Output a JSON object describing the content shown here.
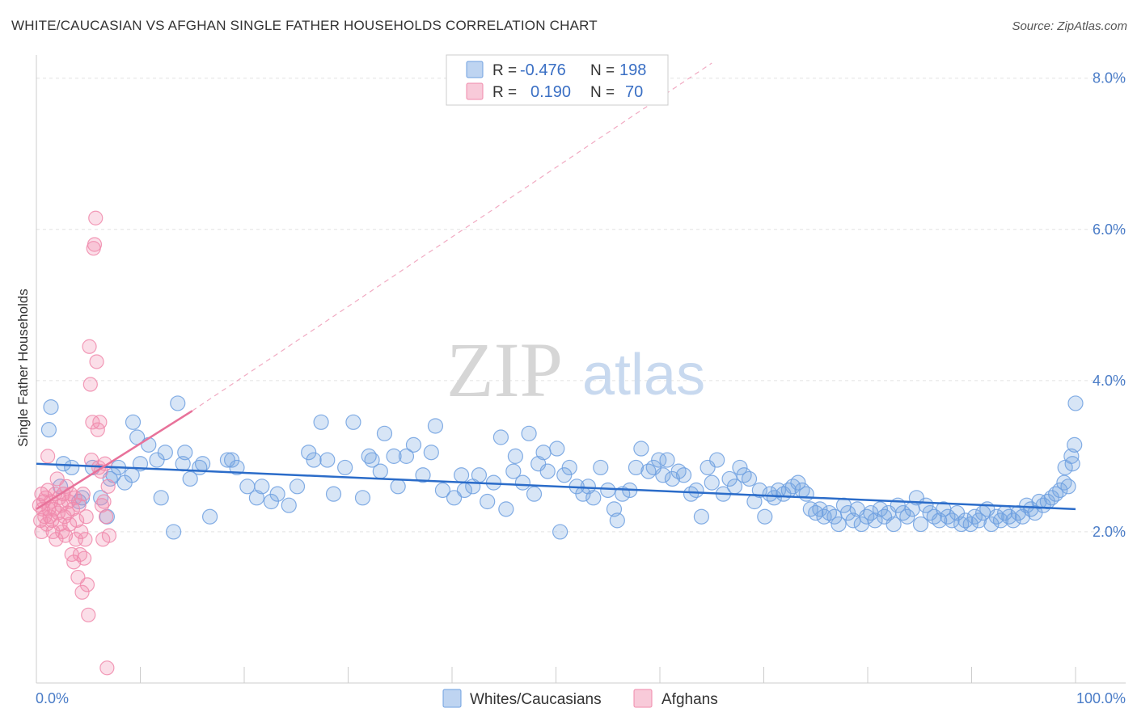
{
  "header": {
    "title": "WHITE/CAUCASIAN VS AFGHAN SINGLE FATHER HOUSEHOLDS CORRELATION CHART",
    "source": "Source: ZipAtlas.com"
  },
  "watermark": {
    "zip": "ZIP",
    "atlas": "atlas"
  },
  "legend": {
    "rows": [
      {
        "r_label": "R =",
        "r_value": "-0.476",
        "n_label": "N =",
        "n_value": "198",
        "color": "#6fa0e0"
      },
      {
        "r_label": "R =",
        "r_value": "0.190",
        "n_label": "N =",
        "n_value": "70",
        "color": "#f08aab"
      }
    ]
  },
  "bottom_legend": {
    "items": [
      {
        "label": "Whites/Caucasians",
        "color": "#6fa0e0"
      },
      {
        "label": "Afghans",
        "color": "#f08aab"
      }
    ]
  },
  "chart_data": {
    "type": "scatter",
    "title": "WHITE/CAUCASIAN VS AFGHAN SINGLE FATHER HOUSEHOLDS CORRELATION CHART",
    "ylabel": "Single Father Households",
    "xlabel": "",
    "xlim": [
      0,
      100
    ],
    "ylim": [
      0,
      8.2
    ],
    "x_tick_labels": [
      "0.0%",
      "100.0%"
    ],
    "y_ticks": [
      {
        "value": 2,
        "label": "2.0%"
      },
      {
        "value": 4,
        "label": "4.0%"
      },
      {
        "value": 6,
        "label": "6.0%"
      },
      {
        "value": 8,
        "label": "8.0%"
      }
    ],
    "grid": true,
    "legend_position": "top-center",
    "series": [
      {
        "name": "Whites/Caucasians",
        "color": "#6fa0e0",
        "trend": {
          "x0": 0,
          "y0": 2.9,
          "x1": 100,
          "y1": 2.3,
          "color": "#2b6cc9"
        },
        "points": [
          [
            1.2,
            3.35
          ],
          [
            1.4,
            3.65
          ],
          [
            2.3,
            2.6
          ],
          [
            2.6,
            2.9
          ],
          [
            3.4,
            2.85
          ],
          [
            4.1,
            2.4
          ],
          [
            4.4,
            2.45
          ],
          [
            5.4,
            2.85
          ],
          [
            6.2,
            2.45
          ],
          [
            7.1,
            2.7
          ],
          [
            6.8,
            2.2
          ],
          [
            7.4,
            2.75
          ],
          [
            7.9,
            2.85
          ],
          [
            8.5,
            2.65
          ],
          [
            9.2,
            2.75
          ],
          [
            9.3,
            3.45
          ],
          [
            10.0,
            2.9
          ],
          [
            9.7,
            3.25
          ],
          [
            10.8,
            3.15
          ],
          [
            12.0,
            2.45
          ],
          [
            11.6,
            2.95
          ],
          [
            12.4,
            3.05
          ],
          [
            13.6,
            3.7
          ],
          [
            13.2,
            2.0
          ],
          [
            14.1,
            2.9
          ],
          [
            14.8,
            2.7
          ],
          [
            14.3,
            3.05
          ],
          [
            15.7,
            2.85
          ],
          [
            16.0,
            2.9
          ],
          [
            16.7,
            2.2
          ],
          [
            18.4,
            2.95
          ],
          [
            18.8,
            2.95
          ],
          [
            19.3,
            2.85
          ],
          [
            20.3,
            2.6
          ],
          [
            21.2,
            2.45
          ],
          [
            21.7,
            2.6
          ],
          [
            22.6,
            2.4
          ],
          [
            23.2,
            2.5
          ],
          [
            24.3,
            2.35
          ],
          [
            25.1,
            2.6
          ],
          [
            26.2,
            3.05
          ],
          [
            26.7,
            2.95
          ],
          [
            27.4,
            3.45
          ],
          [
            28.0,
            2.95
          ],
          [
            28.6,
            2.5
          ],
          [
            29.7,
            2.85
          ],
          [
            30.5,
            3.45
          ],
          [
            31.4,
            2.45
          ],
          [
            32.3,
            2.95
          ],
          [
            32.0,
            3.0
          ],
          [
            33.5,
            3.3
          ],
          [
            33.1,
            2.8
          ],
          [
            34.4,
            3.0
          ],
          [
            34.8,
            2.6
          ],
          [
            35.6,
            3.0
          ],
          [
            36.3,
            3.15
          ],
          [
            37.2,
            2.75
          ],
          [
            38.0,
            3.05
          ],
          [
            38.4,
            3.4
          ],
          [
            39.1,
            2.55
          ],
          [
            40.2,
            2.45
          ],
          [
            40.9,
            2.75
          ],
          [
            41.2,
            2.55
          ],
          [
            42.0,
            2.6
          ],
          [
            42.6,
            2.75
          ],
          [
            43.4,
            2.4
          ],
          [
            44.0,
            2.65
          ],
          [
            44.7,
            3.25
          ],
          [
            45.2,
            2.3
          ],
          [
            45.9,
            2.8
          ],
          [
            46.1,
            3.0
          ],
          [
            46.8,
            2.65
          ],
          [
            47.4,
            3.3
          ],
          [
            47.9,
            2.5
          ],
          [
            48.3,
            2.9
          ],
          [
            48.8,
            3.05
          ],
          [
            49.2,
            2.8
          ],
          [
            50.1,
            3.1
          ],
          [
            50.4,
            2.0
          ],
          [
            50.8,
            2.75
          ],
          [
            51.3,
            2.85
          ],
          [
            52.0,
            2.6
          ],
          [
            52.6,
            2.5
          ],
          [
            53.1,
            2.6
          ],
          [
            53.6,
            2.45
          ],
          [
            54.3,
            2.85
          ],
          [
            55.0,
            2.55
          ],
          [
            55.6,
            2.3
          ],
          [
            55.9,
            2.15
          ],
          [
            56.4,
            2.5
          ],
          [
            57.1,
            2.55
          ],
          [
            57.7,
            2.85
          ],
          [
            58.2,
            3.1
          ],
          [
            58.9,
            2.8
          ],
          [
            59.4,
            2.85
          ],
          [
            59.9,
            2.95
          ],
          [
            60.3,
            2.75
          ],
          [
            60.7,
            2.95
          ],
          [
            61.2,
            2.7
          ],
          [
            61.8,
            2.8
          ],
          [
            62.3,
            2.75
          ],
          [
            63.0,
            2.5
          ],
          [
            63.5,
            2.55
          ],
          [
            64.0,
            2.2
          ],
          [
            64.6,
            2.85
          ],
          [
            65.0,
            2.65
          ],
          [
            65.5,
            2.95
          ],
          [
            66.1,
            2.5
          ],
          [
            66.7,
            2.7
          ],
          [
            67.2,
            2.6
          ],
          [
            67.7,
            2.85
          ],
          [
            68.1,
            2.75
          ],
          [
            68.6,
            2.7
          ],
          [
            69.1,
            2.4
          ],
          [
            69.6,
            2.55
          ],
          [
            70.1,
            2.2
          ],
          [
            70.6,
            2.5
          ],
          [
            71.0,
            2.45
          ],
          [
            71.4,
            2.55
          ],
          [
            71.9,
            2.5
          ],
          [
            72.4,
            2.55
          ],
          [
            72.8,
            2.6
          ],
          [
            73.3,
            2.65
          ],
          [
            73.7,
            2.55
          ],
          [
            74.1,
            2.5
          ],
          [
            74.5,
            2.3
          ],
          [
            75.0,
            2.25
          ],
          [
            75.4,
            2.3
          ],
          [
            75.8,
            2.2
          ],
          [
            76.3,
            2.25
          ],
          [
            76.8,
            2.2
          ],
          [
            77.2,
            2.1
          ],
          [
            77.7,
            2.35
          ],
          [
            78.1,
            2.25
          ],
          [
            78.6,
            2.15
          ],
          [
            79.0,
            2.3
          ],
          [
            79.4,
            2.1
          ],
          [
            79.9,
            2.2
          ],
          [
            80.3,
            2.25
          ],
          [
            80.7,
            2.15
          ],
          [
            81.2,
            2.3
          ],
          [
            81.6,
            2.2
          ],
          [
            82.0,
            2.25
          ],
          [
            82.5,
            2.1
          ],
          [
            82.9,
            2.35
          ],
          [
            83.4,
            2.25
          ],
          [
            83.8,
            2.2
          ],
          [
            84.3,
            2.3
          ],
          [
            84.7,
            2.45
          ],
          [
            85.1,
            2.1
          ],
          [
            85.6,
            2.35
          ],
          [
            86.0,
            2.25
          ],
          [
            86.4,
            2.2
          ],
          [
            86.9,
            2.15
          ],
          [
            87.3,
            2.3
          ],
          [
            87.7,
            2.2
          ],
          [
            88.1,
            2.15
          ],
          [
            88.6,
            2.25
          ],
          [
            89.0,
            2.1
          ],
          [
            89.4,
            2.15
          ],
          [
            89.9,
            2.1
          ],
          [
            90.3,
            2.2
          ],
          [
            90.7,
            2.15
          ],
          [
            91.1,
            2.25
          ],
          [
            91.5,
            2.3
          ],
          [
            91.9,
            2.1
          ],
          [
            92.4,
            2.2
          ],
          [
            92.8,
            2.15
          ],
          [
            93.2,
            2.25
          ],
          [
            93.6,
            2.2
          ],
          [
            94.0,
            2.15
          ],
          [
            94.5,
            2.25
          ],
          [
            94.9,
            2.2
          ],
          [
            95.3,
            2.35
          ],
          [
            95.7,
            2.3
          ],
          [
            96.1,
            2.25
          ],
          [
            96.5,
            2.4
          ],
          [
            96.9,
            2.35
          ],
          [
            97.3,
            2.4
          ],
          [
            97.7,
            2.45
          ],
          [
            98.1,
            2.5
          ],
          [
            98.5,
            2.55
          ],
          [
            98.9,
            2.65
          ],
          [
            99.3,
            2.6
          ],
          [
            99.7,
            2.9
          ],
          [
            99.0,
            2.85
          ],
          [
            99.6,
            3.0
          ],
          [
            99.9,
            3.15
          ],
          [
            100.0,
            3.7
          ]
        ]
      },
      {
        "name": "Afghans",
        "color": "#f08aab",
        "trend": {
          "x0": 0,
          "y0": 2.3,
          "x1": 15,
          "y1": 3.6,
          "color": "#e8729a",
          "dashed_extension_to": [
            65,
            8.2
          ]
        },
        "points": [
          [
            0.3,
            2.35
          ],
          [
            0.4,
            2.15
          ],
          [
            0.5,
            2.5
          ],
          [
            0.5,
            2.0
          ],
          [
            0.6,
            2.3
          ],
          [
            0.7,
            2.4
          ],
          [
            0.8,
            2.2
          ],
          [
            0.9,
            2.45
          ],
          [
            1.0,
            2.1
          ],
          [
            1.1,
            2.55
          ],
          [
            1.1,
            3.0
          ],
          [
            1.2,
            2.3
          ],
          [
            1.3,
            2.2
          ],
          [
            1.4,
            2.4
          ],
          [
            1.5,
            2.15
          ],
          [
            1.6,
            2.0
          ],
          [
            1.7,
            2.3
          ],
          [
            1.8,
            2.5
          ],
          [
            1.9,
            1.9
          ],
          [
            2.0,
            2.7
          ],
          [
            2.1,
            2.25
          ],
          [
            2.2,
            2.45
          ],
          [
            2.3,
            2.1
          ],
          [
            2.4,
            2.35
          ],
          [
            2.5,
            2.0
          ],
          [
            2.6,
            2.5
          ],
          [
            2.7,
            2.2
          ],
          [
            2.8,
            1.95
          ],
          [
            2.9,
            2.6
          ],
          [
            3.0,
            2.25
          ],
          [
            3.1,
            2.4
          ],
          [
            3.2,
            2.1
          ],
          [
            3.3,
            2.5
          ],
          [
            3.4,
            1.7
          ],
          [
            3.5,
            2.3
          ],
          [
            3.6,
            1.6
          ],
          [
            3.7,
            2.45
          ],
          [
            3.8,
            1.9
          ],
          [
            3.9,
            2.15
          ],
          [
            4.0,
            1.4
          ],
          [
            4.1,
            2.35
          ],
          [
            4.2,
            1.7
          ],
          [
            4.3,
            2.0
          ],
          [
            4.4,
            1.2
          ],
          [
            4.5,
            2.5
          ],
          [
            4.6,
            1.65
          ],
          [
            4.7,
            1.9
          ],
          [
            4.8,
            2.2
          ],
          [
            4.9,
            1.3
          ],
          [
            5.0,
            0.9
          ],
          [
            5.1,
            4.45
          ],
          [
            5.2,
            3.95
          ],
          [
            5.3,
            2.95
          ],
          [
            5.4,
            3.45
          ],
          [
            5.5,
            5.75
          ],
          [
            5.6,
            5.8
          ],
          [
            5.7,
            6.15
          ],
          [
            5.8,
            4.25
          ],
          [
            5.9,
            3.35
          ],
          [
            6.0,
            2.85
          ],
          [
            6.1,
            3.45
          ],
          [
            6.2,
            2.8
          ],
          [
            6.3,
            2.35
          ],
          [
            6.4,
            1.9
          ],
          [
            6.5,
            2.4
          ],
          [
            6.6,
            2.9
          ],
          [
            6.7,
            2.2
          ],
          [
            6.8,
            0.2
          ],
          [
            6.9,
            2.6
          ],
          [
            7.0,
            1.95
          ]
        ]
      }
    ]
  }
}
